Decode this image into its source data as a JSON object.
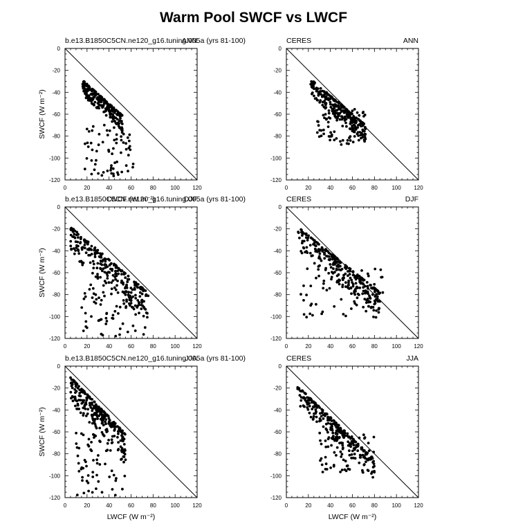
{
  "title": "Warm Pool SWCF vs LWCF",
  "chart_data": [
    {
      "type": "scatter",
      "left_label": "b.e13.B1850C5CN.ne120_g16.tuning.005a (yrs 81-100)",
      "right_label": "ANN",
      "xlabel": "",
      "ylabel": "SWCF (W m⁻²)",
      "xlim": [
        0,
        120
      ],
      "ylim": [
        -120,
        0
      ],
      "xticks": [
        "0",
        "20",
        "40",
        "60",
        "80",
        "100",
        "120"
      ],
      "yticks": [
        "0",
        "-20",
        "-40",
        "-60",
        "-80",
        "-100",
        "-120"
      ],
      "reference_line": {
        "x": [
          0,
          120
        ],
        "y": [
          0,
          -120
        ]
      },
      "cluster": {
        "x_from": 16,
        "x_to": 52,
        "y_top_at_x_from": -29,
        "y_top_at_x_to": -61,
        "spread": 14
      },
      "tail": {
        "x_range": [
          18,
          62
        ],
        "y_range": [
          -70,
          -118
        ]
      }
    },
    {
      "type": "scatter",
      "left_label": "CERES",
      "right_label": "ANN",
      "xlabel": "",
      "ylabel": "",
      "xlim": [
        0,
        120
      ],
      "ylim": [
        -120,
        0
      ],
      "xticks": [
        "0",
        "20",
        "40",
        "60",
        "80",
        "100",
        "120"
      ],
      "yticks": [
        "0",
        "-20",
        "-40",
        "-60",
        "-80",
        "-100",
        "-120"
      ],
      "reference_line": {
        "x": [
          0,
          120
        ],
        "y": [
          0,
          -120
        ]
      },
      "cluster": {
        "x_from": 22,
        "x_to": 72,
        "y_top_at_x_from": -28,
        "y_top_at_x_to": -70,
        "spread": 16
      },
      "tail": {
        "x_range": [
          28,
          72
        ],
        "y_range": [
          -55,
          -88
        ]
      }
    },
    {
      "type": "scatter",
      "left_label": "b.e13.B1850C5CN.ne120_g16.tuning.005a (yrs 81-100)",
      "right_label": "DJF",
      "xlabel": "LWCF (W m⁻²)",
      "ylabel": "SWCF (W m⁻²)",
      "xlim": [
        0,
        120
      ],
      "ylim": [
        -120,
        0
      ],
      "xticks": [
        "0",
        "20",
        "40",
        "60",
        "80",
        "100",
        "120"
      ],
      "yticks": [
        "0",
        "-20",
        "-40",
        "-60",
        "-80",
        "-100",
        "-120"
      ],
      "reference_line": {
        "x": [
          0,
          120
        ],
        "y": [
          0,
          -120
        ]
      },
      "cluster": {
        "x_from": 5,
        "x_to": 75,
        "y_top_at_x_from": -18,
        "y_top_at_x_to": -78,
        "spread": 26
      },
      "tail": {
        "x_range": [
          10,
          78
        ],
        "y_range": [
          -70,
          -118
        ]
      }
    },
    {
      "type": "scatter",
      "left_label": "CERES",
      "right_label": "DJF",
      "xlabel": "",
      "ylabel": "",
      "xlim": [
        0,
        120
      ],
      "ylim": [
        -120,
        0
      ],
      "xticks": [
        "0",
        "20",
        "40",
        "60",
        "80",
        "100",
        "120"
      ],
      "yticks": [
        "0",
        "-20",
        "-40",
        "-60",
        "-80",
        "-100",
        "-120"
      ],
      "reference_line": {
        "x": [
          0,
          120
        ],
        "y": [
          0,
          -120
        ]
      },
      "cluster": {
        "x_from": 10,
        "x_to": 85,
        "y_top_at_x_from": -18,
        "y_top_at_x_to": -78,
        "spread": 22
      },
      "tail": {
        "x_range": [
          12,
          90
        ],
        "y_range": [
          -55,
          -102
        ]
      }
    },
    {
      "type": "scatter",
      "left_label": "b.e13.B1850C5CN.ne120_g16.tuning.005a (yrs 81-100)",
      "right_label": "JJA",
      "xlabel": "LWCF (W m⁻²)",
      "ylabel": "SWCF (W m⁻²)",
      "xlim": [
        0,
        120
      ],
      "ylim": [
        -120,
        0
      ],
      "xticks": [
        "0",
        "20",
        "40",
        "60",
        "80",
        "100",
        "120"
      ],
      "yticks": [
        "0",
        "-20",
        "-40",
        "-60",
        "-80",
        "-100",
        "-120"
      ],
      "reference_line": {
        "x": [
          0,
          120
        ],
        "y": [
          0,
          -120
        ]
      },
      "cluster": {
        "x_from": 5,
        "x_to": 55,
        "y_top_at_x_from": -10,
        "y_top_at_x_to": -62,
        "spread": 24
      },
      "tail": {
        "x_range": [
          10,
          55
        ],
        "y_range": [
          -60,
          -118
        ]
      }
    },
    {
      "type": "scatter",
      "left_label": "CERES",
      "right_label": "JJA",
      "xlabel": "LWCF (W m⁻²)",
      "ylabel": "",
      "xlim": [
        0,
        120
      ],
      "ylim": [
        -120,
        0
      ],
      "xticks": [
        "0",
        "20",
        "40",
        "60",
        "80",
        "100",
        "120"
      ],
      "yticks": [
        "0",
        "-20",
        "-40",
        "-60",
        "-80",
        "-100",
        "-120"
      ],
      "reference_line": {
        "x": [
          0,
          120
        ],
        "y": [
          0,
          -120
        ]
      },
      "cluster": {
        "x_from": 10,
        "x_to": 80,
        "y_top_at_x_from": -18,
        "y_top_at_x_to": -85,
        "spread": 18
      },
      "tail": {
        "x_range": [
          30,
          80
        ],
        "y_range": [
          -60,
          -97
        ]
      }
    }
  ]
}
